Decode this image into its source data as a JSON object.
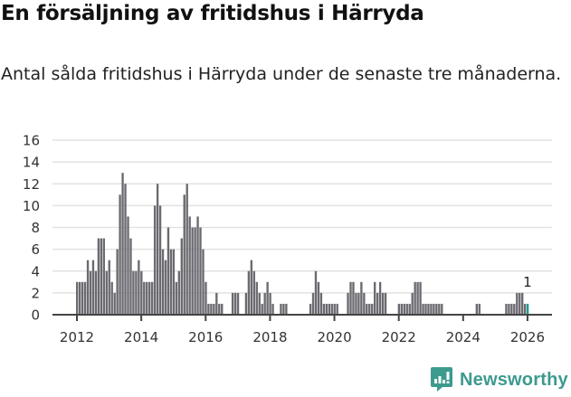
{
  "header": {
    "title": "En försäljning av fritidshus i Härryda",
    "subtitle": "Antal sålda fritidshus i Härryda under de senaste tre månaderna."
  },
  "brand": {
    "name": "Newsworthy",
    "icon": "bar-chart-speech-bubble-icon",
    "color": "#3d9a8e"
  },
  "colors": {
    "bar": "#6b6a70",
    "highlight": "#1a9e92",
    "grid": "#e2e2e2",
    "axis": "#444444"
  },
  "chart_data": {
    "type": "bar",
    "title": "En försäljning av fritidshus i Härryda",
    "subtitle": "Antal sålda fritidshus i Härryda under de senaste tre månaderna.",
    "xlabel": "",
    "ylabel": "",
    "ylim": [
      0,
      16
    ],
    "yticks": [
      0,
      2,
      4,
      6,
      8,
      10,
      12,
      14,
      16
    ],
    "xticks": [
      "2012",
      "2014",
      "2016",
      "2018",
      "2020",
      "2022",
      "2024",
      "2026"
    ],
    "grid": true,
    "legend": null,
    "x_start": "2012-01",
    "x_end": "2026-01",
    "frequency": "monthly",
    "highlight_last": true,
    "annotation": {
      "label": "1",
      "period": "2026-01"
    },
    "values": [
      3,
      3,
      3,
      3,
      5,
      4,
      5,
      4,
      7,
      7,
      7,
      4,
      5,
      3,
      2,
      6,
      11,
      13,
      12,
      9,
      7,
      4,
      4,
      5,
      4,
      3,
      3,
      3,
      3,
      10,
      12,
      10,
      6,
      5,
      8,
      6,
      6,
      3,
      4,
      7,
      11,
      12,
      9,
      8,
      8,
      9,
      8,
      6,
      3,
      1,
      1,
      1,
      2,
      1,
      1,
      0,
      0,
      0,
      2,
      2,
      2,
      0,
      0,
      2,
      4,
      5,
      4,
      3,
      2,
      1,
      2,
      3,
      2,
      1,
      0,
      0,
      1,
      1,
      1,
      0,
      0,
      0,
      0,
      0,
      0,
      0,
      0,
      1,
      2,
      4,
      3,
      2,
      1,
      1,
      1,
      1,
      1,
      1,
      0,
      0,
      0,
      2,
      3,
      3,
      2,
      2,
      3,
      2,
      1,
      1,
      1,
      3,
      2,
      3,
      2,
      2,
      0,
      0,
      0,
      0,
      1,
      1,
      1,
      1,
      1,
      2,
      3,
      3,
      3,
      1,
      1,
      1,
      1,
      1,
      1,
      1,
      1,
      0,
      0,
      0,
      0,
      0,
      0,
      0,
      0,
      0,
      0,
      0,
      0,
      1,
      1,
      0,
      0,
      0,
      0,
      0,
      0,
      0,
      0,
      0,
      1,
      1,
      1,
      1,
      2,
      2,
      2,
      1,
      1
    ]
  }
}
